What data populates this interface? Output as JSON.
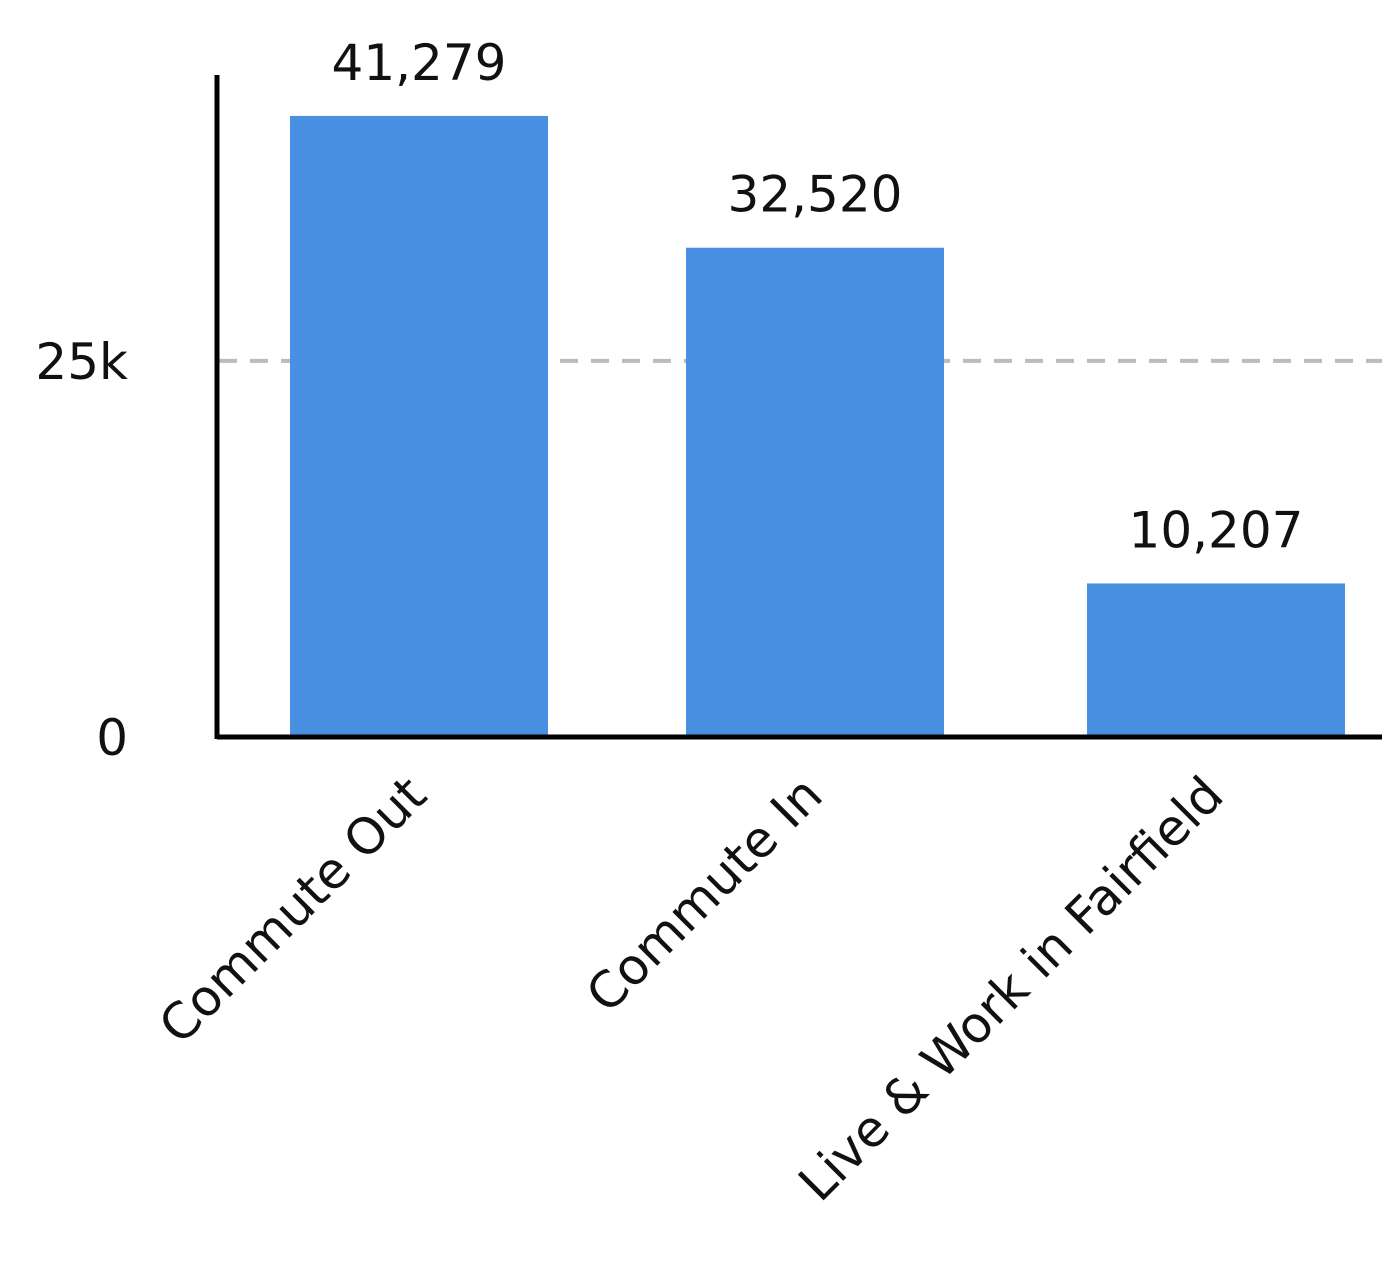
{
  "chart_data": {
    "type": "bar",
    "categories": [
      "Commute Out",
      "Commute In",
      "Live & Work in Fairfield"
    ],
    "values": [
      41279,
      32520,
      10207
    ],
    "value_labels": [
      "41,279",
      "32,520",
      "10,207"
    ],
    "y_ticks": [
      {
        "value": 0,
        "label": "0"
      },
      {
        "value": 25000,
        "label": "25k"
      }
    ],
    "ylim": [
      0,
      44000
    ],
    "grid": "dashed at 25k",
    "legend": "none",
    "bar_color": "#4A90E2",
    "grid_color": "#BBBBBB",
    "axis_color": "#000000"
  }
}
